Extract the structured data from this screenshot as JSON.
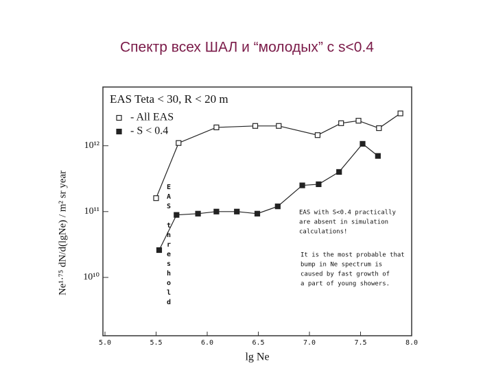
{
  "chart_data": {
    "type": "scatter",
    "title": "Спектр всех ШАЛ и “молодых” с s<0.4",
    "header": "EAS    Teta < 30, R < 20 m",
    "x_label": "lg Ne",
    "y_label": "Ne¹·⁷⁵ dN/d(lgNe) / m² sr year",
    "log_y": true,
    "xlim": [
      5,
      8
    ],
    "xticks": [
      {
        "value": 5,
        "label": "5.0"
      },
      5.5,
      {
        "value": 6,
        "label": "6.0"
      },
      6.5,
      {
        "value": 7,
        "label": "7.0"
      },
      7.5,
      {
        "value": 8,
        "label": "8.0"
      }
    ],
    "ylim": [
      1300000000,
      7800000000000
    ],
    "yticks": [
      {
        "value": 10000000000,
        "label": "10¹⁰"
      },
      {
        "value": 100000000000,
        "label": "10¹¹"
      },
      {
        "value": 1000000000000,
        "label": "10¹²"
      }
    ],
    "series": [
      {
        "name": "- All EAS",
        "color": "#222222",
        "marker": "open",
        "x": [
          5.5,
          5.72,
          6.09,
          6.47,
          6.7,
          7.08,
          7.31,
          7.48,
          7.68,
          7.89
        ],
        "values": [
          160000000000,
          1100000000000,
          1900000000000,
          2000000000000,
          2000000000000,
          1450000000000,
          2200000000000,
          2400000000000,
          1850000000000,
          3100000000000
        ]
      },
      {
        "name": "- S < 0.4",
        "color": "#222222",
        "marker": "filled",
        "x": [
          5.53,
          5.7,
          5.91,
          6.09,
          6.29,
          6.49,
          6.69,
          6.93,
          7.09,
          7.29,
          7.52,
          7.67
        ],
        "values": [
          26000000000,
          89000000000,
          93000000000,
          100000000000,
          100000000000,
          93000000000,
          120000000000,
          250000000000,
          260000000000,
          400000000000,
          1070000000000,
          700000000000
        ]
      }
    ],
    "annotations": [
      "EAS threshold",
      "EAS with S<0.4 practically",
      "are absent in simulation",
      "calculations!",
      "It is the most probable that",
      "bump in Ne spectrum is",
      "caused by fast growth of",
      "a part of young showers."
    ]
  }
}
